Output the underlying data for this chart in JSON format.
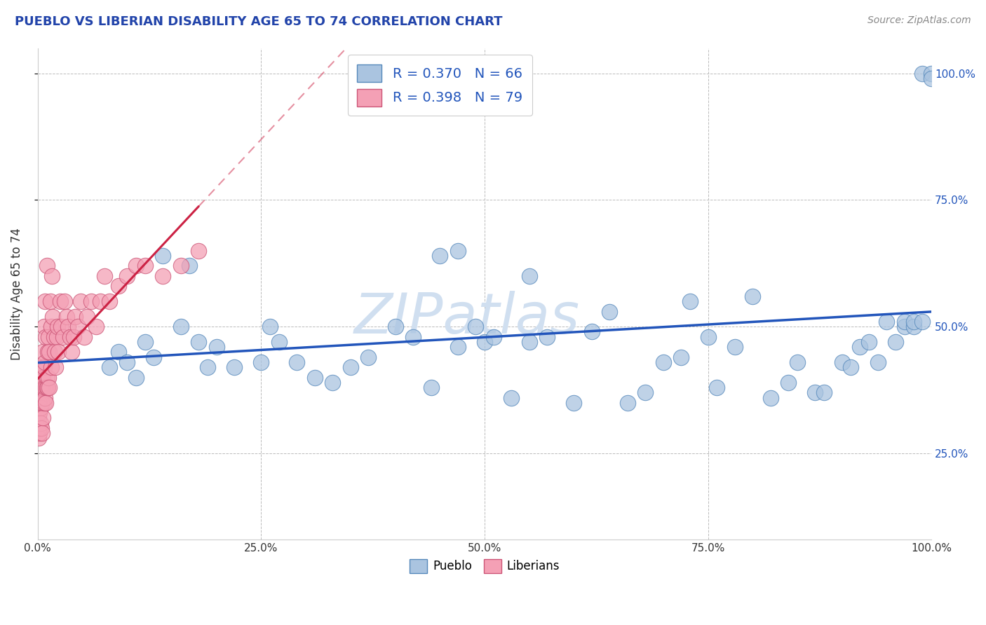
{
  "title": "PUEBLO VS LIBERIAN DISABILITY AGE 65 TO 74 CORRELATION CHART",
  "source": "Source: ZipAtlas.com",
  "ylabel": "Disability Age 65 to 74",
  "xlim": [
    0.0,
    1.0
  ],
  "ylim": [
    0.08,
    1.05
  ],
  "y_ticks": [
    0.25,
    0.5,
    0.75,
    1.0
  ],
  "y_tick_labels_right": [
    "25.0%",
    "50.0%",
    "75.0%",
    "100.0%"
  ],
  "pueblo_color": "#aac4e0",
  "pueblo_edge": "#5588bb",
  "liberian_color": "#f4a0b5",
  "liberian_edge": "#cc5577",
  "pueblo_R": 0.37,
  "pueblo_N": 66,
  "liberian_R": 0.398,
  "liberian_N": 79,
  "trend_blue": "#2255bb",
  "trend_pink": "#cc2244",
  "watermark": "ZIPatlas",
  "watermark_color": "#d0dff0",
  "background_color": "#ffffff",
  "grid_color": "#bbbbbb",
  "title_color": "#2244aa",
  "right_tick_color": "#2255bb",
  "pueblo_x": [
    0.08,
    0.09,
    0.1,
    0.11,
    0.12,
    0.13,
    0.14,
    0.16,
    0.17,
    0.18,
    0.19,
    0.2,
    0.22,
    0.25,
    0.26,
    0.27,
    0.29,
    0.31,
    0.33,
    0.35,
    0.37,
    0.4,
    0.42,
    0.44,
    0.47,
    0.49,
    0.5,
    0.51,
    0.53,
    0.55,
    0.57,
    0.6,
    0.62,
    0.64,
    0.66,
    0.68,
    0.7,
    0.72,
    0.73,
    0.75,
    0.76,
    0.78,
    0.8,
    0.82,
    0.84,
    0.85,
    0.87,
    0.88,
    0.9,
    0.91,
    0.92,
    0.93,
    0.94,
    0.95,
    0.96,
    0.97,
    0.97,
    0.98,
    0.98,
    0.99,
    0.99,
    1.0,
    1.0,
    0.45,
    0.47,
    0.55
  ],
  "pueblo_y": [
    0.42,
    0.45,
    0.43,
    0.4,
    0.47,
    0.44,
    0.64,
    0.5,
    0.62,
    0.47,
    0.42,
    0.46,
    0.42,
    0.43,
    0.5,
    0.47,
    0.43,
    0.4,
    0.39,
    0.42,
    0.44,
    0.5,
    0.48,
    0.38,
    0.46,
    0.5,
    0.47,
    0.48,
    0.36,
    0.47,
    0.48,
    0.35,
    0.49,
    0.53,
    0.35,
    0.37,
    0.43,
    0.44,
    0.55,
    0.48,
    0.38,
    0.46,
    0.56,
    0.36,
    0.39,
    0.43,
    0.37,
    0.37,
    0.43,
    0.42,
    0.46,
    0.47,
    0.43,
    0.51,
    0.47,
    0.5,
    0.51,
    0.5,
    0.51,
    0.51,
    1.0,
    1.0,
    0.99,
    0.64,
    0.65,
    0.6
  ],
  "liberian_x": [
    0.001,
    0.001,
    0.001,
    0.002,
    0.002,
    0.002,
    0.002,
    0.003,
    0.003,
    0.003,
    0.003,
    0.004,
    0.004,
    0.004,
    0.004,
    0.005,
    0.005,
    0.005,
    0.005,
    0.006,
    0.006,
    0.006,
    0.006,
    0.007,
    0.007,
    0.007,
    0.007,
    0.008,
    0.008,
    0.008,
    0.009,
    0.009,
    0.009,
    0.01,
    0.01,
    0.01,
    0.011,
    0.011,
    0.012,
    0.012,
    0.013,
    0.013,
    0.014,
    0.015,
    0.015,
    0.016,
    0.017,
    0.018,
    0.019,
    0.02,
    0.021,
    0.022,
    0.023,
    0.025,
    0.026,
    0.028,
    0.03,
    0.032,
    0.034,
    0.036,
    0.038,
    0.04,
    0.042,
    0.045,
    0.048,
    0.052,
    0.055,
    0.06,
    0.065,
    0.07,
    0.075,
    0.08,
    0.09,
    0.1,
    0.11,
    0.12,
    0.14,
    0.16,
    0.18
  ],
  "liberian_y": [
    0.3,
    0.32,
    0.28,
    0.35,
    0.33,
    0.29,
    0.3,
    0.38,
    0.36,
    0.34,
    0.31,
    0.4,
    0.35,
    0.38,
    0.3,
    0.42,
    0.35,
    0.38,
    0.29,
    0.45,
    0.38,
    0.4,
    0.32,
    0.5,
    0.42,
    0.35,
    0.38,
    0.55,
    0.43,
    0.36,
    0.48,
    0.38,
    0.35,
    0.62,
    0.4,
    0.38,
    0.45,
    0.38,
    0.48,
    0.4,
    0.45,
    0.38,
    0.55,
    0.5,
    0.42,
    0.6,
    0.52,
    0.48,
    0.45,
    0.42,
    0.48,
    0.5,
    0.45,
    0.55,
    0.5,
    0.48,
    0.55,
    0.52,
    0.5,
    0.48,
    0.45,
    0.48,
    0.52,
    0.5,
    0.55,
    0.48,
    0.52,
    0.55,
    0.5,
    0.55,
    0.6,
    0.55,
    0.58,
    0.6,
    0.62,
    0.62,
    0.6,
    0.62,
    0.65
  ]
}
